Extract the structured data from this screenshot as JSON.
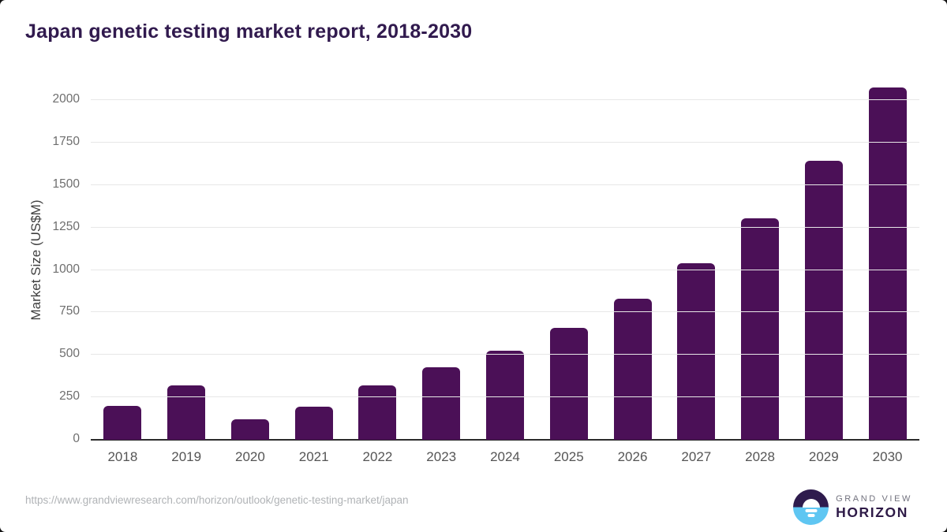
{
  "page": {
    "title": "Japan genetic testing market report, 2018-2030",
    "footer": {
      "source_url": "https://www.grandviewresearch.com/horizon/outlook/genetic-testing-market/japan",
      "logo_top": "GRAND VIEW",
      "logo_bottom": "HORIZON"
    }
  },
  "colors": {
    "bar": "#4b1057",
    "title_text": "#311a4e",
    "axis_line": "#2b2b2b",
    "gridline": "#e7e7e7",
    "y_tick_text": "#6e6e6e",
    "x_tick_text": "#555555",
    "url_text": "#b0b3b6",
    "logo_purple": "#2e1b4d",
    "logo_blue": "#5fc6f2"
  },
  "chart_data": {
    "type": "bar",
    "title": "Japan genetic testing market report, 2018-2030",
    "xlabel": "",
    "ylabel": "Market Size (US$M)",
    "categories": [
      "2018",
      "2019",
      "2020",
      "2021",
      "2022",
      "2023",
      "2024",
      "2025",
      "2026",
      "2027",
      "2028",
      "2029",
      "2030"
    ],
    "values": [
      200,
      320,
      120,
      195,
      320,
      425,
      525,
      660,
      830,
      1040,
      1305,
      1645,
      2075
    ],
    "y_ticks": [
      0,
      250,
      500,
      750,
      1000,
      1250,
      1500,
      1750,
      2000
    ],
    "ylim": [
      0,
      2125
    ],
    "grid": "horizontal",
    "legend": "none",
    "bar_color": "#4b1057"
  }
}
